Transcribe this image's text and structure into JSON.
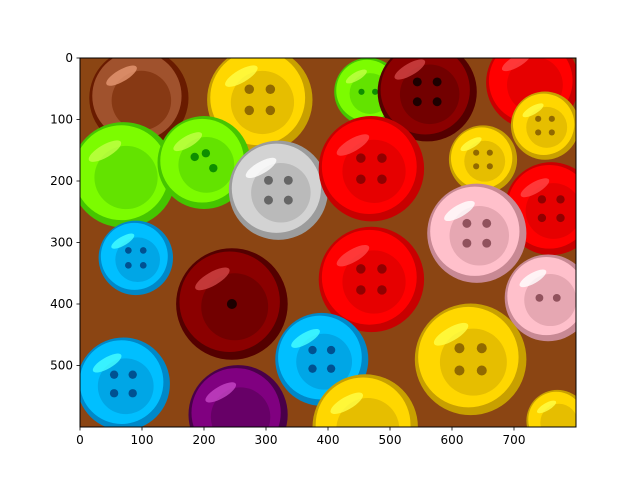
{
  "chart_data": {
    "type": "heatmap",
    "title": "",
    "xlabel": "",
    "ylabel": "",
    "xlim": [
      0,
      800
    ],
    "ylim": [
      600,
      0
    ],
    "x_ticks": [
      0,
      100,
      200,
      300,
      400,
      500,
      600,
      700
    ],
    "y_ticks": [
      0,
      100,
      200,
      300,
      400,
      500
    ],
    "grid": false,
    "image": {
      "width": 800,
      "height": 600,
      "content": "posterized photograph of colorful sewing buttons",
      "background_color": "#8b4513",
      "buttons": [
        {
          "cx": 95,
          "cy": 65,
          "r": 80,
          "color": "#a0522d",
          "holes": 0
        },
        {
          "cx": 290,
          "cy": 68,
          "r": 85,
          "color": "#ffd700",
          "holes": 4
        },
        {
          "cx": 465,
          "cy": 55,
          "r": 55,
          "color": "#7cfc00",
          "holes": 2
        },
        {
          "cx": 560,
          "cy": 55,
          "r": 80,
          "color": "#8b0000",
          "holes": 4
        },
        {
          "cx": 730,
          "cy": 40,
          "r": 75,
          "color": "#ff0000",
          "holes": 0
        },
        {
          "cx": 750,
          "cy": 110,
          "r": 55,
          "color": "#ffd700",
          "holes": 4
        },
        {
          "cx": 70,
          "cy": 190,
          "r": 85,
          "color": "#7cfc00",
          "holes": 0
        },
        {
          "cx": 200,
          "cy": 170,
          "r": 75,
          "color": "#7cfc00",
          "holes": 3
        },
        {
          "cx": 320,
          "cy": 215,
          "r": 80,
          "color": "#d3d3d3",
          "holes": 4
        },
        {
          "cx": 470,
          "cy": 180,
          "r": 85,
          "color": "#ff0000",
          "holes": 4
        },
        {
          "cx": 650,
          "cy": 165,
          "r": 55,
          "color": "#ffd700",
          "holes": 4
        },
        {
          "cx": 760,
          "cy": 245,
          "r": 75,
          "color": "#ff0000",
          "holes": 4
        },
        {
          "cx": 90,
          "cy": 325,
          "r": 60,
          "color": "#00bfff",
          "holes": 4
        },
        {
          "cx": 245,
          "cy": 400,
          "r": 90,
          "color": "#8b0000",
          "holes": 1
        },
        {
          "cx": 470,
          "cy": 360,
          "r": 85,
          "color": "#ff0000",
          "holes": 4
        },
        {
          "cx": 640,
          "cy": 285,
          "r": 80,
          "color": "#ffc0cb",
          "holes": 4
        },
        {
          "cx": 755,
          "cy": 390,
          "r": 70,
          "color": "#ffc0cb",
          "holes": 2
        },
        {
          "cx": 390,
          "cy": 490,
          "r": 75,
          "color": "#00bfff",
          "holes": 4
        },
        {
          "cx": 630,
          "cy": 490,
          "r": 90,
          "color": "#ffd700",
          "holes": 4
        },
        {
          "cx": 70,
          "cy": 530,
          "r": 75,
          "color": "#00bfff",
          "holes": 4
        },
        {
          "cx": 255,
          "cy": 580,
          "r": 80,
          "color": "#800080",
          "holes": 0
        },
        {
          "cx": 460,
          "cy": 600,
          "r": 85,
          "color": "#ffd700",
          "holes": 0
        },
        {
          "cx": 770,
          "cy": 590,
          "r": 50,
          "color": "#ffd700",
          "holes": 0
        }
      ]
    }
  }
}
